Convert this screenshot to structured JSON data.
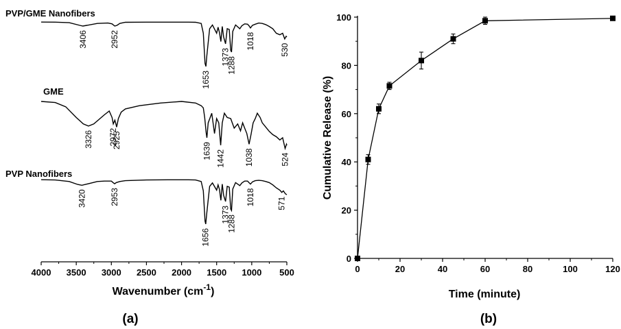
{
  "chart_data": [
    {
      "panel": "(a)",
      "type": "line",
      "xlabel": "Wavenumber (cm",
      "xlabel_sup": "-1",
      "xlabel_end": ")",
      "xlim": [
        4000,
        500
      ],
      "xticks": [
        4000,
        3500,
        3000,
        2500,
        2000,
        1500,
        1000,
        500
      ],
      "series": [
        {
          "name": "PVP/GME Nanofibers",
          "color": "#000000",
          "baseline": 0.4,
          "points": [
            [
              4000,
              0.4
            ],
            [
              3800,
              0.6
            ],
            [
              3600,
              2
            ],
            [
              3450,
              9
            ],
            [
              3406,
              11
            ],
            [
              3350,
              9
            ],
            [
              3200,
              4
            ],
            [
              3050,
              3
            ],
            [
              2990,
              5
            ],
            [
              2952,
              11
            ],
            [
              2920,
              9
            ],
            [
              2880,
              4
            ],
            [
              2800,
              1
            ],
            [
              2500,
              0.5
            ],
            [
              2200,
              0.5
            ],
            [
              1900,
              0.5
            ],
            [
              1800,
              1
            ],
            [
              1720,
              4
            ],
            [
              1690,
              30
            ],
            [
              1665,
              110
            ],
            [
              1653,
              118
            ],
            [
              1640,
              90
            ],
            [
              1600,
              18
            ],
            [
              1560,
              8
            ],
            [
              1500,
              30
            ],
            [
              1480,
              14
            ],
            [
              1460,
              28
            ],
            [
              1440,
              52
            ],
            [
              1420,
              12
            ],
            [
              1400,
              40
            ],
            [
              1373,
              58
            ],
            [
              1350,
              18
            ],
            [
              1320,
              20
            ],
            [
              1300,
              75
            ],
            [
              1288,
              80
            ],
            [
              1270,
              25
            ],
            [
              1230,
              8
            ],
            [
              1170,
              18
            ],
            [
              1140,
              10
            ],
            [
              1100,
              5
            ],
            [
              1060,
              6
            ],
            [
              1040,
              10
            ],
            [
              1018,
              16
            ],
            [
              990,
              9
            ],
            [
              950,
              6
            ],
            [
              900,
              3
            ],
            [
              850,
              4
            ],
            [
              800,
              7
            ],
            [
              750,
              12
            ],
            [
              700,
              18
            ],
            [
              650,
              30
            ],
            [
              600,
              34
            ],
            [
              560,
              30
            ],
            [
              530,
              45
            ],
            [
              510,
              38
            ],
            [
              500,
              40
            ]
          ],
          "peaks": [
            3406,
            2952,
            1653,
            1373,
            1288,
            1018,
            530
          ]
        },
        {
          "name": "GME",
          "color": "#000000",
          "baseline": 0,
          "points": [
            [
              4000,
              0
            ],
            [
              3800,
              2
            ],
            [
              3650,
              10
            ],
            [
              3500,
              30
            ],
            [
              3400,
              42
            ],
            [
              3326,
              46
            ],
            [
              3250,
              42
            ],
            [
              3100,
              25
            ],
            [
              3030,
              18
            ],
            [
              2990,
              30
            ],
            [
              2972,
              42
            ],
            [
              2950,
              35
            ],
            [
              2935,
              42
            ],
            [
              2925,
              48
            ],
            [
              2900,
              32
            ],
            [
              2860,
              20
            ],
            [
              2800,
              14
            ],
            [
              2600,
              8
            ],
            [
              2300,
              3
            ],
            [
              2000,
              0
            ],
            [
              1800,
              3
            ],
            [
              1720,
              8
            ],
            [
              1690,
              12
            ],
            [
              1670,
              30
            ],
            [
              1650,
              58
            ],
            [
              1639,
              68
            ],
            [
              1620,
              40
            ],
            [
              1570,
              22
            ],
            [
              1530,
              60
            ],
            [
              1500,
              32
            ],
            [
              1470,
              40
            ],
            [
              1442,
              82
            ],
            [
              1420,
              40
            ],
            [
              1390,
              22
            ],
            [
              1350,
              30
            ],
            [
              1300,
              32
            ],
            [
              1250,
              50
            ],
            [
              1200,
              42
            ],
            [
              1160,
              55
            ],
            [
              1130,
              40
            ],
            [
              1100,
              50
            ],
            [
              1070,
              60
            ],
            [
              1038,
              80
            ],
            [
              1010,
              62
            ],
            [
              980,
              40
            ],
            [
              950,
              32
            ],
            [
              920,
              22
            ],
            [
              880,
              30
            ],
            [
              850,
              40
            ],
            [
              800,
              48
            ],
            [
              750,
              56
            ],
            [
              700,
              62
            ],
            [
              650,
              66
            ],
            [
              600,
              72
            ],
            [
              560,
              68
            ],
            [
              524,
              88
            ],
            [
              505,
              80
            ],
            [
              500,
              82
            ]
          ],
          "peaks": [
            3326,
            2972,
            2925,
            1639,
            1442,
            1038,
            524
          ]
        },
        {
          "name": "PVP Nanofibers",
          "color": "#000000",
          "baseline": 0.4,
          "points": [
            [
              4000,
              0.4
            ],
            [
              3800,
              1
            ],
            [
              3600,
              5
            ],
            [
              3480,
              13
            ],
            [
              3420,
              15
            ],
            [
              3350,
              12
            ],
            [
              3200,
              5
            ],
            [
              3100,
              4
            ],
            [
              3000,
              4
            ],
            [
              2975,
              8
            ],
            [
              2953,
              11
            ],
            [
              2930,
              8
            ],
            [
              2880,
              5
            ],
            [
              2800,
              3
            ],
            [
              2500,
              1
            ],
            [
              2200,
              0.5
            ],
            [
              1900,
              0.5
            ],
            [
              1800,
              1
            ],
            [
              1720,
              5
            ],
            [
              1690,
              30
            ],
            [
              1665,
              110
            ],
            [
              1656,
              118
            ],
            [
              1640,
              88
            ],
            [
              1600,
              18
            ],
            [
              1560,
              9
            ],
            [
              1500,
              28
            ],
            [
              1480,
              14
            ],
            [
              1460,
              26
            ],
            [
              1440,
              55
            ],
            [
              1420,
              12
            ],
            [
              1400,
              42
            ],
            [
              1373,
              58
            ],
            [
              1350,
              18
            ],
            [
              1320,
              20
            ],
            [
              1300,
              78
            ],
            [
              1288,
              82
            ],
            [
              1270,
              25
            ],
            [
              1230,
              8
            ],
            [
              1170,
              16
            ],
            [
              1140,
              9
            ],
            [
              1100,
              4
            ],
            [
              1060,
              4
            ],
            [
              1040,
              8
            ],
            [
              1018,
              12
            ],
            [
              990,
              6
            ],
            [
              950,
              3
            ],
            [
              900,
              2
            ],
            [
              850,
              3
            ],
            [
              800,
              5
            ],
            [
              750,
              8
            ],
            [
              700,
              14
            ],
            [
              650,
              22
            ],
            [
              600,
              28
            ],
            [
              571,
              34
            ],
            [
              550,
              30
            ],
            [
              520,
              38
            ],
            [
              500,
              40
            ]
          ],
          "peaks": [
            3420,
            2953,
            1656,
            1373,
            1288,
            1018,
            571
          ]
        }
      ]
    },
    {
      "panel": "(b)",
      "type": "scatter",
      "xlabel": "Time (minute)",
      "ylabel": "Cumulative Release (%)",
      "xlim": [
        0,
        120
      ],
      "ylim": [
        0,
        100
      ],
      "xticks": [
        0,
        20,
        40,
        60,
        80,
        100,
        120
      ],
      "yticks": [
        0,
        20,
        40,
        60,
        80,
        100
      ],
      "series": [
        {
          "x": [
            0,
            5,
            10,
            15,
            30,
            45,
            60,
            120
          ],
          "y": [
            0,
            41,
            62,
            71.5,
            82,
            91,
            98.5,
            99.5
          ],
          "err": [
            0,
            2,
            2,
            1.5,
            3.5,
            2,
            1.5,
            0
          ],
          "color": "#000000",
          "marker": "square"
        }
      ]
    }
  ]
}
